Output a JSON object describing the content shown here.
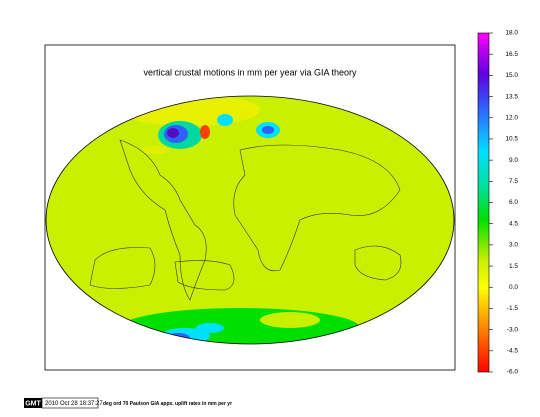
{
  "map": {
    "title": "vertical crustal motions in mm per year via GIA theory"
  },
  "colorbar": {
    "lim": [
      -6,
      18
    ],
    "ticks": [
      {
        "value": 18,
        "label": "18.0"
      },
      {
        "value": 16.5,
        "label": "16.5"
      },
      {
        "value": 15,
        "label": "15.0"
      },
      {
        "value": 13.5,
        "label": "13.5"
      },
      {
        "value": 12,
        "label": "12.0"
      },
      {
        "value": 10.5,
        "label": "10.5"
      },
      {
        "value": 9,
        "label": "9.0"
      },
      {
        "value": 7.5,
        "label": "7.5"
      },
      {
        "value": 6,
        "label": "6.0"
      },
      {
        "value": 4.5,
        "label": "4.5"
      },
      {
        "value": 3,
        "label": "3.0"
      },
      {
        "value": 1.5,
        "label": "1.5"
      },
      {
        "value": 0,
        "label": "0.0"
      },
      {
        "value": -1.5,
        "label": "-1.5"
      },
      {
        "value": -3,
        "label": "-3.0"
      },
      {
        "value": -4.5,
        "label": "-4.5"
      },
      {
        "value": -6,
        "label": "-6.0"
      }
    ]
  },
  "footer": {
    "logo": "GMT",
    "timestamp": "2010 Oct 28 18:37:27",
    "caption": "deg ord 70 Paulson GIA appx. uplift rates in mm per yr"
  }
}
